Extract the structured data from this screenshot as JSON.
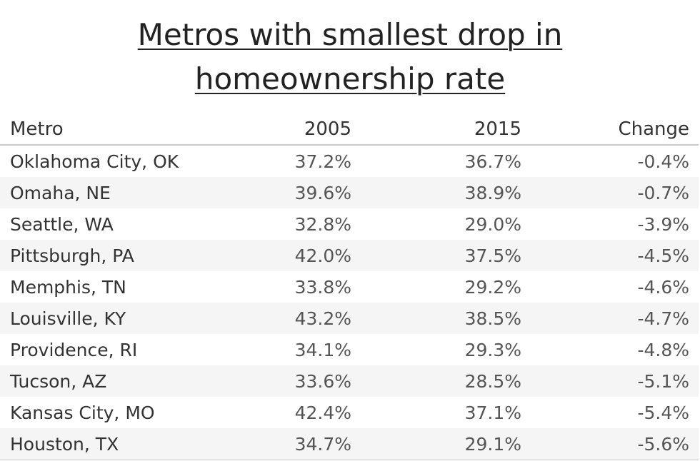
{
  "chart_data": {
    "type": "table",
    "title_line1": "Metros with smallest drop in",
    "title_line2": "homeownership rate",
    "columns": [
      "Metro",
      "2005",
      "2015",
      "Change"
    ],
    "rows": [
      {
        "metro": "Oklahoma City, OK",
        "y2005": "37.2%",
        "y2015": "36.7%",
        "change": "-0.4%"
      },
      {
        "metro": "Omaha, NE",
        "y2005": "39.6%",
        "y2015": "38.9%",
        "change": "-0.7%"
      },
      {
        "metro": "Seattle, WA",
        "y2005": "32.8%",
        "y2015": "29.0%",
        "change": "-3.9%"
      },
      {
        "metro": "Pittsburgh, PA",
        "y2005": "42.0%",
        "y2015": "37.5%",
        "change": "-4.5%"
      },
      {
        "metro": "Memphis, TN",
        "y2005": "33.8%",
        "y2015": "29.2%",
        "change": "-4.6%"
      },
      {
        "metro": "Louisville, KY",
        "y2005": "43.2%",
        "y2015": "38.5%",
        "change": "-4.7%"
      },
      {
        "metro": "Providence, RI",
        "y2005": "34.1%",
        "y2015": "29.3%",
        "change": "-4.8%"
      },
      {
        "metro": "Tucson, AZ",
        "y2005": "33.6%",
        "y2015": "28.5%",
        "change": "-5.1%"
      },
      {
        "metro": "Kansas City, MO",
        "y2005": "42.4%",
        "y2015": "37.1%",
        "change": "-5.4%"
      },
      {
        "metro": "Houston, TX",
        "y2005": "34.7%",
        "y2015": "29.1%",
        "change": "-5.6%"
      }
    ]
  }
}
